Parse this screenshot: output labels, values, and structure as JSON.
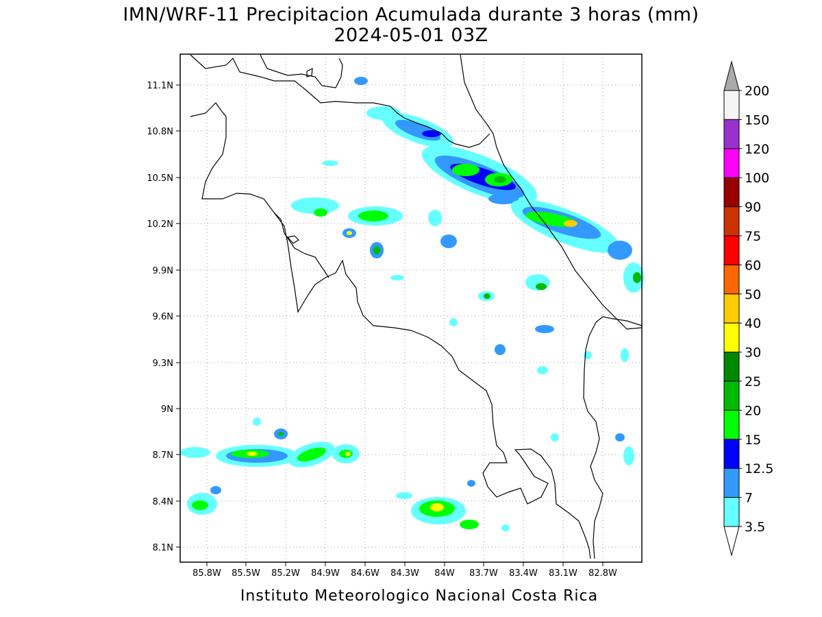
{
  "title": {
    "line1": "IMN/WRF-11 Precipitacion Acumulada durante 3 horas (mm)",
    "line2": "2024-05-01 03Z"
  },
  "credit": "Instituto Meteorologico Nacional Costa Rica",
  "map": {
    "lat_ticks": [
      "11.1N",
      "10.8N",
      "10.5N",
      "10.2N",
      "9.9N",
      "9.6N",
      "9.3N",
      "9N",
      "8.7N",
      "8.4N",
      "8.1N"
    ],
    "lon_ticks": [
      "85.8W",
      "85.5W",
      "85.2W",
      "84.9W",
      "84.6W",
      "84.3W",
      "84W",
      "83.7W",
      "83.4W",
      "83.1W",
      "82.8W"
    ],
    "grid": "dotted"
  },
  "colorbar": {
    "labels": [
      "200",
      "150",
      "120",
      "100",
      "90",
      "75",
      "60",
      "50",
      "40",
      "30",
      "25",
      "20",
      "15",
      "12.5",
      "7",
      "3.5"
    ],
    "colors": [
      "#aaaaaa",
      "#f5f5f5",
      "#9932cc",
      "#ff00ff",
      "#990000",
      "#cc3300",
      "#ff0000",
      "#ff6600",
      "#ffcc00",
      "#ffff00",
      "#008800",
      "#00bb00",
      "#00ff00",
      "#0000ff",
      "#3399ff",
      "#66ffff",
      "#ffffff"
    ]
  }
}
